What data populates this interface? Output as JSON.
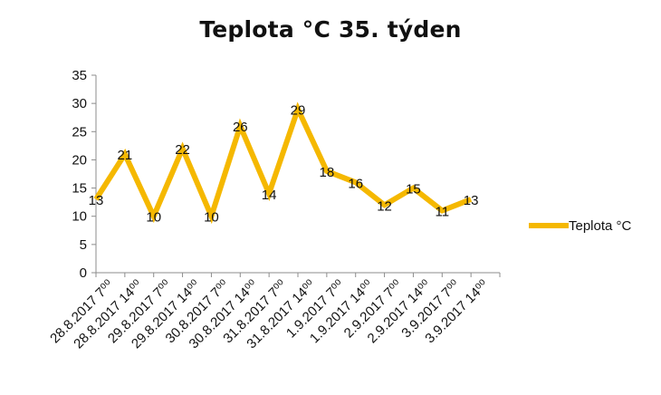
{
  "chart_data": {
    "type": "line",
    "title": "Teplota °C 35. týden",
    "xlabel": "",
    "ylabel": "",
    "ylim": [
      0,
      35
    ],
    "yticks": [
      0,
      5,
      10,
      15,
      20,
      25,
      30,
      35
    ],
    "grid": false,
    "legend_position": "right",
    "categories": [
      "28.8.2017 7⁰⁰",
      "28.8.2017 14⁰⁰",
      "29.8.2017 7⁰⁰",
      "29.8.2017 14⁰⁰",
      "30.8.2017 7⁰⁰",
      "30.8.2017 14⁰⁰",
      "31.8.2017 7⁰⁰",
      "31.8.2017 14⁰⁰",
      "1.9.2017 7⁰⁰",
      "1.9.2017 14⁰⁰",
      "2.9.2017 7⁰⁰",
      "2.9.2017 14⁰⁰",
      "3.9.2017 7⁰⁰",
      "3.9.2017 14⁰⁰"
    ],
    "series": [
      {
        "name": "Teplota °C",
        "color": "#F5B800",
        "values": [
          13,
          21,
          10,
          22,
          10,
          26,
          14,
          29,
          18,
          16,
          12,
          15,
          11,
          13
        ]
      }
    ]
  }
}
